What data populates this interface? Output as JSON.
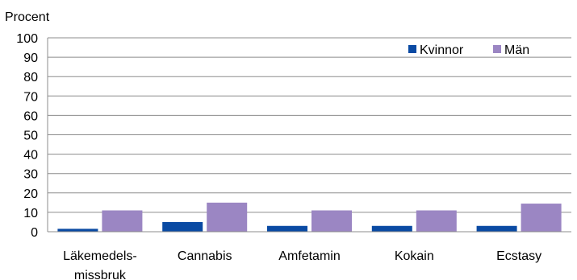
{
  "chart_data": {
    "type": "bar",
    "title": "",
    "ylabel": "Procent",
    "xlabel": "",
    "ylim": [
      0,
      100
    ],
    "yticks": [
      0,
      10,
      20,
      30,
      40,
      50,
      60,
      70,
      80,
      90,
      100
    ],
    "grid": true,
    "legend_position": "top-right",
    "categories": [
      [
        "Läkemedels-",
        "missbruk"
      ],
      [
        "Cannabis"
      ],
      [
        "Amfetamin"
      ],
      [
        "Kokain"
      ],
      [
        "Ecstasy"
      ]
    ],
    "series": [
      {
        "name": "Kvinnor",
        "color": "#0a4aa3",
        "values": [
          1.5,
          5,
          3,
          3,
          3
        ]
      },
      {
        "name": "Män",
        "color": "#9b86c3",
        "values": [
          11,
          15,
          11,
          11,
          14.5
        ]
      }
    ]
  }
}
